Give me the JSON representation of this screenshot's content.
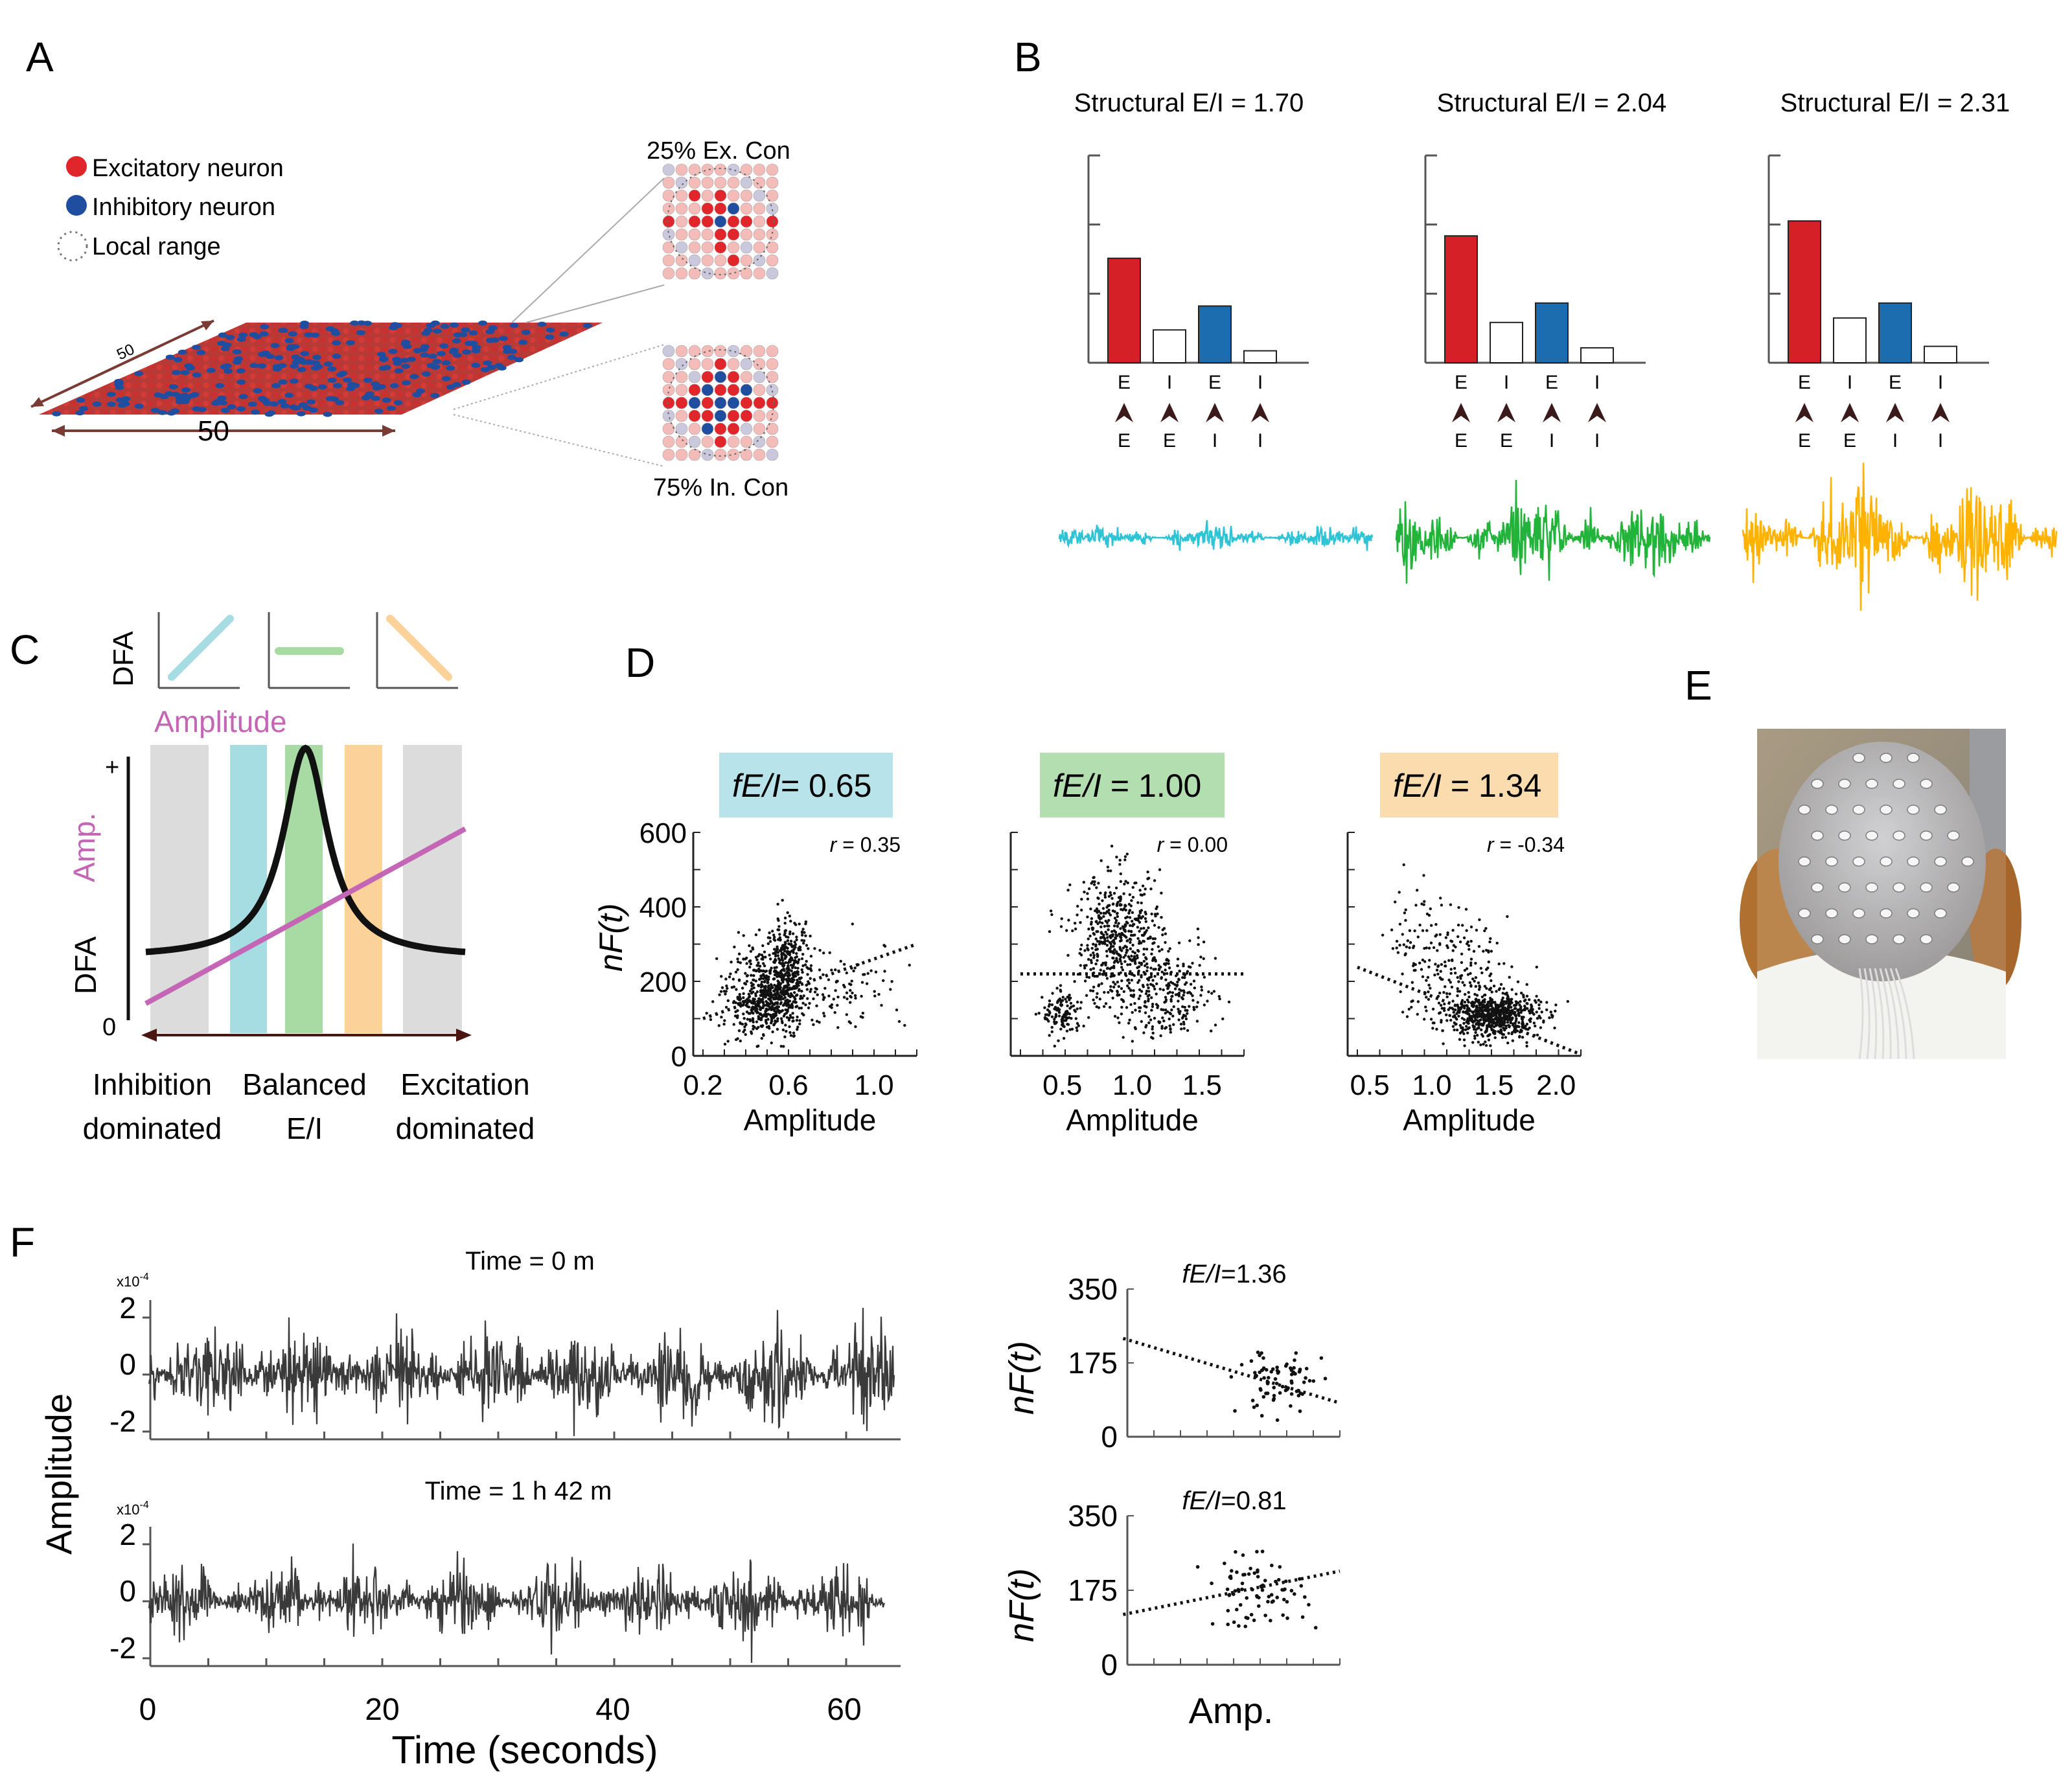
{
  "panel_labels": {
    "a": "A",
    "b": "B",
    "c": "C",
    "d": "D",
    "e": "E",
    "f": "F"
  },
  "panel_a": {
    "legend": [
      "Excitatory neuron",
      "Inhibitory neuron",
      "Local  range"
    ],
    "grid_dims": [
      "50",
      "50"
    ],
    "zoom_labels": [
      "25% Ex. Con",
      "75% In. Con"
    ],
    "colors": {
      "excitatory": "#e0262b",
      "inhibitory": "#1f4ea0",
      "light_exc": "#f4bcb8",
      "light_inh": "#c9c8dc"
    }
  },
  "panel_b": {
    "conn_top": [
      "E",
      "I",
      "E",
      "I"
    ],
    "conn_bottom": [
      "E",
      "E",
      "I",
      "I"
    ],
    "bar_colors": [
      "#d62028",
      "#ffffff",
      "#1b6db0",
      "#ffffff"
    ],
    "signal_colors": [
      "#2ec4d6",
      "#22b33a",
      "#ffb300"
    ]
  },
  "panel_c": {
    "mini_ylabel": "DFA",
    "amp_title": "Amplitude",
    "ylabel_amp": "Amp.",
    "ylabel_dfa": "DFA",
    "y_plus": "+",
    "y_zero": "0",
    "regime_labels": [
      [
        "Inhibition",
        "dominated"
      ],
      [
        "Balanced",
        "E/I"
      ],
      [
        "Excitation",
        "dominated"
      ]
    ],
    "band_colors": [
      "#dcdcdc",
      "#a6dde3",
      "#a8dba4",
      "#fbd39a",
      "#dcdcdc"
    ],
    "amp_color": "#c465b5"
  },
  "panel_d": [
    {
      "label_italic": "fE/I",
      "label_value": "= 0.65",
      "bg": "#b8e3ea",
      "r_text": "= 0.35",
      "xticks": [
        "0.2",
        "0.6",
        "1.0"
      ],
      "yticks": [
        "0",
        "200",
        "400",
        "600"
      ],
      "xlabel": "Amplitude",
      "ylabel": "nF(t)"
    },
    {
      "label_italic": "fE/I",
      "label_value": " = 1.00",
      "bg": "#b3dfb0",
      "r_text": "= 0.00",
      "xticks": [
        "0.5",
        "1.0",
        "1.5"
      ],
      "yticks": [],
      "xlabel": "Amplitude",
      "ylabel": ""
    },
    {
      "label_italic": "fE/I",
      "label_value": " = 1.34",
      "bg": "#fbdcae",
      "r_text": "= -0.34",
      "xticks": [
        "0.5",
        "1.0",
        "1.5",
        "2.0"
      ],
      "yticks": [],
      "xlabel": "Amplitude",
      "ylabel": ""
    }
  ],
  "panel_f": {
    "traces": [
      {
        "title": "Time = 0 m",
        "scale": "x10",
        "scale_exp": "-4",
        "yticks": [
          "2",
          "0",
          "-2"
        ]
      },
      {
        "title": "Time = 1 h 42 m",
        "scale": "x10",
        "scale_exp": "-4",
        "yticks": [
          "2",
          "0",
          "-2"
        ]
      }
    ],
    "ylabel": "Amplitude",
    "xticks": [
      "0",
      "20",
      "40",
      "60"
    ],
    "xlabel": "Time (seconds)",
    "scatters": [
      {
        "title_italic": "fE/I",
        "title_value": "=1.36",
        "yticks": [
          "350",
          "175",
          "0"
        ],
        "ylabel": "nF(t)"
      },
      {
        "title_italic": "fE/I",
        "title_value": "=0.81",
        "yticks": [
          "350",
          "175",
          "0"
        ],
        "ylabel": "nF(t)"
      }
    ],
    "scatter_xlabel": "Amp."
  },
  "chart_data": [
    {
      "type": "bar",
      "title": "Structural E/I = 1.70",
      "categories": [
        "E→E",
        "E→I",
        "I→E",
        "I→I"
      ],
      "values": [
        0.7,
        0.22,
        0.38,
        0.08
      ]
    },
    {
      "type": "bar",
      "title": "Structural E/I = 2.04",
      "categories": [
        "E→E",
        "E→I",
        "I→E",
        "I→I"
      ],
      "values": [
        0.85,
        0.27,
        0.4,
        0.1
      ]
    },
    {
      "type": "bar",
      "title": "Structural E/I = 2.31",
      "categories": [
        "E→E",
        "E→I",
        "I→E",
        "I→I"
      ],
      "values": [
        0.95,
        0.3,
        0.4,
        0.11
      ]
    },
    {
      "type": "line",
      "title": "Amplitude",
      "x": [
        0,
        0.2,
        0.4,
        0.5,
        0.6,
        0.8,
        1.0
      ],
      "series": [
        {
          "name": "DFA",
          "values": [
            0.22,
            0.26,
            0.55,
            1.0,
            0.55,
            0.26,
            0.22
          ]
        },
        {
          "name": "Amplitude",
          "values": [
            0.05,
            0.18,
            0.31,
            0.37,
            0.44,
            0.57,
            0.7
          ]
        }
      ],
      "xlabel": "",
      "ylabel": "DFA"
    },
    {
      "type": "scatter",
      "title": "fE/I= 0.65",
      "xlabel": "Amplitude",
      "ylabel": "nF(t)",
      "xlim": [
        0.2,
        1.2
      ],
      "ylim": [
        0,
        600
      ],
      "r": 0.35,
      "trend": {
        "slope": 200,
        "intercept": 60
      },
      "clusters": [
        {
          "cx": 0.5,
          "cy": 160,
          "sx": 0.09,
          "sy": 60,
          "n": 650
        },
        {
          "cx": 0.6,
          "cy": 250,
          "sx": 0.05,
          "sy": 60,
          "n": 250
        },
        {
          "cx": 0.85,
          "cy": 190,
          "sx": 0.15,
          "sy": 60,
          "n": 100
        }
      ]
    },
    {
      "type": "scatter",
      "title": "fE/I = 1.00",
      "xlabel": "Amplitude",
      "ylabel": "nF(t)",
      "xlim": [
        0.2,
        1.8
      ],
      "ylim": [
        0,
        600
      ],
      "r": 0.0,
      "trend": {
        "slope": 0,
        "intercept": 220
      },
      "clusters": [
        {
          "cx": 0.5,
          "cy": 110,
          "sx": 0.07,
          "sy": 30,
          "n": 120
        },
        {
          "cx": 0.9,
          "cy": 310,
          "sx": 0.16,
          "sy": 90,
          "n": 550
        },
        {
          "cx": 1.25,
          "cy": 160,
          "sx": 0.18,
          "sy": 60,
          "n": 250
        }
      ]
    },
    {
      "type": "scatter",
      "title": "fE/I = 1.34",
      "xlabel": "Amplitude",
      "ylabel": "nF(t)",
      "xlim": [
        0.4,
        2.2
      ],
      "ylim": [
        0,
        600
      ],
      "r": -0.34,
      "trend": {
        "slope": -130,
        "intercept": 290
      },
      "clusters": [
        {
          "cx": 1.5,
          "cy": 110,
          "sx": 0.18,
          "sy": 30,
          "n": 650
        },
        {
          "cx": 1.2,
          "cy": 200,
          "sx": 0.2,
          "sy": 80,
          "n": 200
        },
        {
          "cx": 0.95,
          "cy": 330,
          "sx": 0.15,
          "sy": 80,
          "n": 60
        }
      ]
    },
    {
      "type": "scatter",
      "title": "fE/I=1.36",
      "xlabel": "Amp.",
      "ylabel": "nF(t)",
      "xlim": [
        0,
        1
      ],
      "ylim": [
        0,
        350
      ],
      "trend": {
        "slope": -150,
        "intercept": 230
      },
      "clusters": [
        {
          "cx": 0.72,
          "cy": 130,
          "sx": 0.1,
          "sy": 40,
          "n": 80
        }
      ]
    },
    {
      "type": "scatter",
      "title": "fE/I=0.81",
      "xlabel": "Amp.",
      "ylabel": "nF(t)",
      "xlim": [
        0,
        1
      ],
      "ylim": [
        0,
        350
      ],
      "trend": {
        "slope": 100,
        "intercept": 120
      },
      "clusters": [
        {
          "cx": 0.6,
          "cy": 170,
          "sx": 0.12,
          "sy": 40,
          "n": 80
        }
      ]
    }
  ]
}
